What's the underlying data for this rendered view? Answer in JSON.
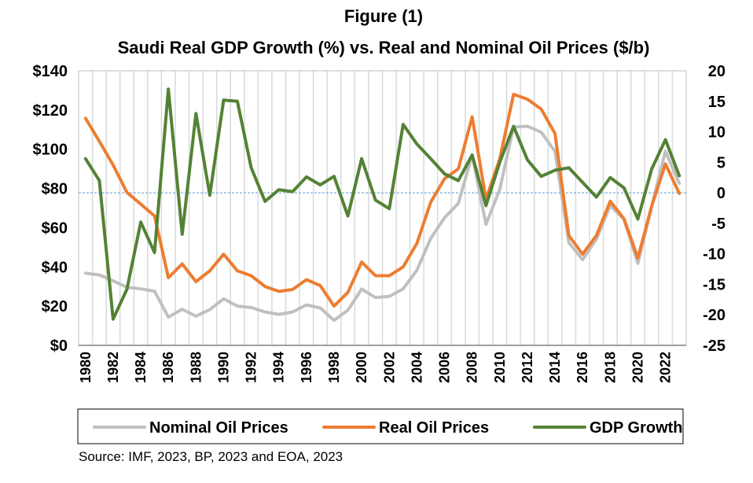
{
  "chart_data": {
    "type": "line",
    "title": "Figure (1)",
    "subtitle": "Saudi Real GDP Growth (%) vs. Real and Nominal Oil Prices ($/b)",
    "x": [
      1980,
      1981,
      1982,
      1983,
      1984,
      1985,
      1986,
      1987,
      1988,
      1989,
      1990,
      1991,
      1992,
      1993,
      1994,
      1995,
      1996,
      1997,
      1998,
      1999,
      2000,
      2001,
      2002,
      2003,
      2004,
      2005,
      2006,
      2007,
      2008,
      2009,
      2010,
      2011,
      2012,
      2013,
      2014,
      2015,
      2016,
      2017,
      2018,
      2019,
      2020,
      2021,
      2022,
      2023
    ],
    "x_tick_labels": [
      "1980",
      "1982",
      "1984",
      "1986",
      "1988",
      "1990",
      "1992",
      "1994",
      "1996",
      "1998",
      "2000",
      "2002",
      "2004",
      "2006",
      "2008",
      "2010",
      "2012",
      "2014",
      "2016",
      "2018",
      "2020",
      "2022"
    ],
    "y_left": {
      "range": [
        0,
        140
      ],
      "ticks": [
        "$0",
        "$20",
        "$40",
        "$60",
        "$80",
        "$100",
        "$120",
        "$140"
      ]
    },
    "y_right": {
      "range": [
        -25,
        20
      ],
      "ticks": [
        "-25",
        "-20",
        "-15",
        "-10",
        "-5",
        "0",
        "5",
        "10",
        "15",
        "20"
      ]
    },
    "grid": "vertical",
    "legend_position": "bottom",
    "series": [
      {
        "name": "Nominal Oil Prices",
        "axis": "left",
        "color": "#c0c0c0",
        "values": [
          36.8,
          35.9,
          32.9,
          29.6,
          28.8,
          27.6,
          14.4,
          18.4,
          14.9,
          18.2,
          23.7,
          20.0,
          19.3,
          17.0,
          15.8,
          17.0,
          20.6,
          19.1,
          12.7,
          17.9,
          28.7,
          24.4,
          25.0,
          28.8,
          38.3,
          54.5,
          65.1,
          72.4,
          97.0,
          61.7,
          79.5,
          111.3,
          111.7,
          108.7,
          98.9,
          52.4,
          43.7,
          54.2,
          71.3,
          64.2,
          41.8,
          70.9,
          99.0,
          82.6
        ]
      },
      {
        "name": "Real Oil Prices",
        "axis": "left",
        "color": "#ed7d31",
        "values": [
          115.8,
          104.0,
          92.0,
          78.0,
          72.0,
          66.0,
          34.5,
          41.5,
          32.5,
          38.0,
          46.5,
          38.0,
          35.5,
          30.0,
          27.5,
          28.5,
          33.5,
          30.5,
          20.0,
          27.0,
          42.5,
          35.5,
          35.5,
          40.0,
          52.0,
          73.0,
          85.0,
          90.0,
          116.5,
          74.5,
          95.0,
          128.0,
          125.5,
          120.5,
          108.0,
          56.0,
          46.5,
          56.0,
          73.5,
          64.5,
          44.5,
          71.0,
          92.5,
          77.5
        ]
      },
      {
        "name": "GDP Growth",
        "axis": "right",
        "color": "#548235",
        "values": [
          5.6,
          2.0,
          -20.7,
          -15.8,
          -4.8,
          -9.8,
          17.0,
          -6.8,
          13.0,
          -0.4,
          15.2,
          15.0,
          4.1,
          -1.4,
          0.5,
          0.2,
          2.6,
          1.3,
          2.7,
          -3.8,
          5.6,
          -1.2,
          -2.6,
          11.2,
          8.0,
          5.6,
          3.1,
          2.0,
          6.2,
          -2.1,
          5.0,
          10.9,
          5.4,
          2.7,
          3.7,
          4.1,
          1.7,
          -0.7,
          2.5,
          0.8,
          -4.3,
          3.9,
          8.7,
          2.8
        ]
      }
    ],
    "reference_line": {
      "axis": "right",
      "value": 0,
      "color": "#5b9bd5",
      "style": "dashed"
    },
    "source": "Source: IMF, 2023, BP, 2023 and EOA, 2023"
  }
}
